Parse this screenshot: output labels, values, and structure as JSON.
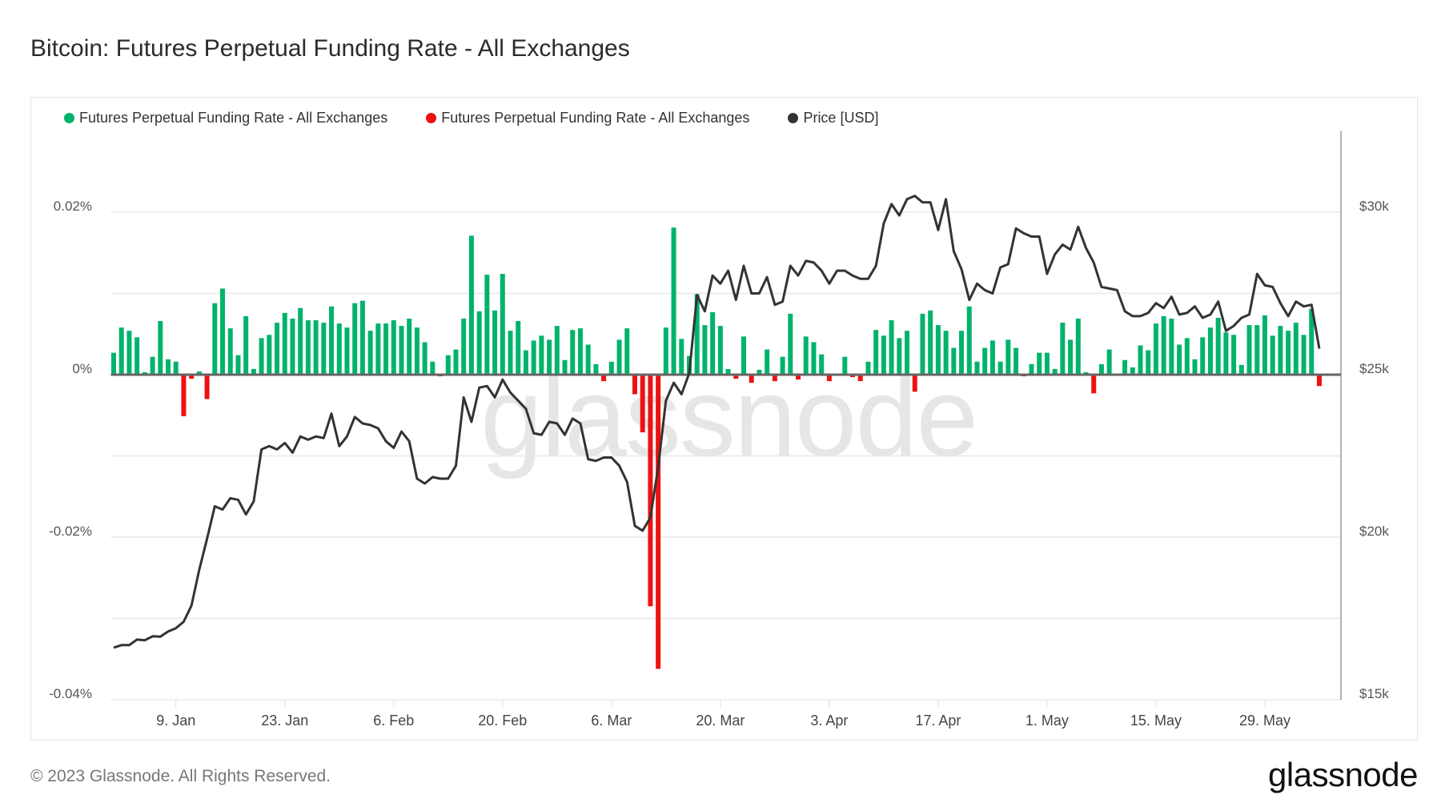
{
  "title": "Bitcoin: Futures Perpetual Funding Rate - All Exchanges",
  "footer": {
    "copyright": "© 2023 Glassnode. All Rights Reserved.",
    "logo": "glassnode",
    "watermark": "glassnode"
  },
  "chart_data": {
    "type": "bar+line",
    "title": "Bitcoin: Futures Perpetual Funding Rate - All Exchanges",
    "legend": [
      {
        "name": "Futures Perpetual Funding Rate - All Exchanges",
        "color": "#00b36b"
      },
      {
        "name": "Futures Perpetual Funding Rate - All Exchanges",
        "color": "#ee1111"
      },
      {
        "name": "Price [USD]",
        "color": "#333333"
      }
    ],
    "legend_position": "top-left",
    "colors": {
      "positive": "#00b36b",
      "negative": "#ee1111",
      "price": "#333333",
      "grid": "#e8e8e8",
      "zero_line": "#666666"
    },
    "x_start_date": "2023-01-01",
    "x_end_date": "2023-06-05",
    "x_ticks": [
      {
        "label": "9. Jan",
        "date": "2023-01-09"
      },
      {
        "label": "23. Jan",
        "date": "2023-01-23"
      },
      {
        "label": "6. Feb",
        "date": "2023-02-06"
      },
      {
        "label": "20. Feb",
        "date": "2023-02-20"
      },
      {
        "label": "6. Mar",
        "date": "2023-03-06"
      },
      {
        "label": "20. Mar",
        "date": "2023-03-20"
      },
      {
        "label": "3. Apr",
        "date": "2023-04-03"
      },
      {
        "label": "17. Apr",
        "date": "2023-04-17"
      },
      {
        "label": "1. May",
        "date": "2023-05-01"
      },
      {
        "label": "15. May",
        "date": "2023-05-15"
      },
      {
        "label": "29. May",
        "date": "2023-05-29"
      }
    ],
    "y_left": {
      "unit": "%",
      "range": [
        -0.04,
        0.03
      ],
      "ticks": [
        {
          "label": "0.02%",
          "value": 0.02
        },
        {
          "label": "0%",
          "value": 0
        },
        {
          "label": "-0.02%",
          "value": -0.02
        },
        {
          "label": "-0.04%",
          "value": -0.04
        }
      ],
      "gridlines": [
        0.02,
        0.01,
        0,
        -0.01,
        -0.02,
        -0.03,
        -0.04
      ]
    },
    "y_right": {
      "unit": "USD",
      "range": [
        15000,
        32500
      ],
      "ticks": [
        {
          "label": "$30k",
          "value": 30000
        },
        {
          "label": "$25k",
          "value": 25000
        },
        {
          "label": "$20k",
          "value": 20000
        },
        {
          "label": "$15k",
          "value": 15000
        }
      ]
    },
    "grid": true,
    "funding_rate_percent": [
      0.0027,
      0.0058,
      0.0054,
      0.0046,
      0.0003,
      0.0022,
      0.0066,
      0.0019,
      0.0016,
      -0.0051,
      -0.0005,
      0.0004,
      -0.003,
      0.0088,
      0.0106,
      0.0057,
      0.0024,
      0.0072,
      0.0007,
      0.0045,
      0.0049,
      0.0064,
      0.0076,
      0.0069,
      0.0082,
      0.0067,
      0.0067,
      0.0064,
      0.0084,
      0.0063,
      0.0058,
      0.0088,
      0.0091,
      0.0054,
      0.0063,
      0.0063,
      0.0067,
      0.006,
      0.0069,
      0.0058,
      0.004,
      0.0016,
      -0.0002,
      0.0024,
      0.0031,
      0.0069,
      0.0171,
      0.0078,
      0.0123,
      0.0079,
      0.0124,
      0.0054,
      0.0066,
      0.003,
      0.0042,
      0.0048,
      0.0043,
      0.006,
      0.0018,
      0.0055,
      0.0057,
      0.0037,
      0.0013,
      -0.0008,
      0.0016,
      0.0043,
      0.0057,
      -0.0024,
      -0.0071,
      -0.0285,
      -0.0362,
      0.0058,
      0.0181,
      0.0044,
      0.0023,
      0.0099,
      0.0061,
      0.0077,
      0.006,
      0.0007,
      -0.0005,
      0.0047,
      -0.001,
      0.0006,
      0.0031,
      -0.0008,
      0.0022,
      0.0075,
      -0.0006,
      0.0047,
      0.004,
      0.0025,
      -0.0008,
      0.0001,
      0.0022,
      -0.0003,
      -0.0008,
      0.0016,
      0.0055,
      0.0048,
      0.0067,
      0.0045,
      0.0054,
      -0.0021,
      0.0075,
      0.0079,
      0.0061,
      0.0054,
      0.0033,
      0.0054,
      0.0084,
      0.0016,
      0.0033,
      0.0042,
      0.0016,
      0.0043,
      0.0033,
      -0.0002,
      0.0013,
      0.0027,
      0.0027,
      0.0007,
      0.0064,
      0.0043,
      0.0069,
      0.0003,
      -0.0023,
      0.0013,
      0.0031,
      0.0001,
      0.0018,
      0.0009,
      0.0036,
      0.003,
      0.0063,
      0.0072,
      0.0069,
      0.0037,
      0.0045,
      0.0019,
      0.0046,
      0.0058,
      0.007,
      0.0052,
      0.0049,
      0.0012,
      0.0061,
      0.0061,
      0.0073,
      0.0048,
      0.006,
      0.0054,
      0.0064,
      0.0049,
      0.0081,
      -0.0014
    ],
    "price_usd": [
      16600,
      16680,
      16680,
      16850,
      16830,
      16950,
      16940,
      17100,
      17200,
      17400,
      17900,
      19000,
      19950,
      20950,
      20850,
      21200,
      21150,
      20700,
      21100,
      22700,
      22800,
      22700,
      22900,
      22600,
      23100,
      23000,
      23100,
      23050,
      23800,
      22800,
      23100,
      23700,
      23500,
      23450,
      23350,
      22950,
      22750,
      23250,
      22950,
      21800,
      21650,
      21850,
      21800,
      21800,
      22200,
      24300,
      23550,
      24600,
      24650,
      24300,
      24850,
      24450,
      24200,
      23950,
      23200,
      23150,
      23550,
      23500,
      23150,
      23650,
      23500,
      22400,
      22350,
      22450,
      22450,
      22200,
      21700,
      20350,
      20200,
      20600,
      22150,
      24200,
      24750,
      24400,
      25050,
      27450,
      26950,
      28050,
      27800,
      28200,
      27300,
      28350,
      27500,
      27500,
      28000,
      27150,
      27250,
      28350,
      28050,
      28500,
      28450,
      28200,
      27800,
      28200,
      28200,
      28050,
      27950,
      27950,
      28350,
      29650,
      30250,
      29900,
      30400,
      30500,
      30300,
      30300,
      29450,
      30400,
      28800,
      28250,
      27300,
      27800,
      27600,
      27500,
      28300,
      28400,
      29500,
      29350,
      29250,
      29250,
      28100,
      28700,
      29000,
      28850,
      29550,
      28900,
      28450,
      27700,
      27650,
      27600,
      26950,
      26800,
      26800,
      26900,
      27200,
      27050,
      27400,
      26850,
      26900,
      27100,
      26750,
      26850,
      27250,
      26350,
      26500,
      26750,
      26850,
      28100,
      27750,
      27700,
      27200,
      26800,
      27250,
      27100,
      27150,
      25800
    ]
  }
}
